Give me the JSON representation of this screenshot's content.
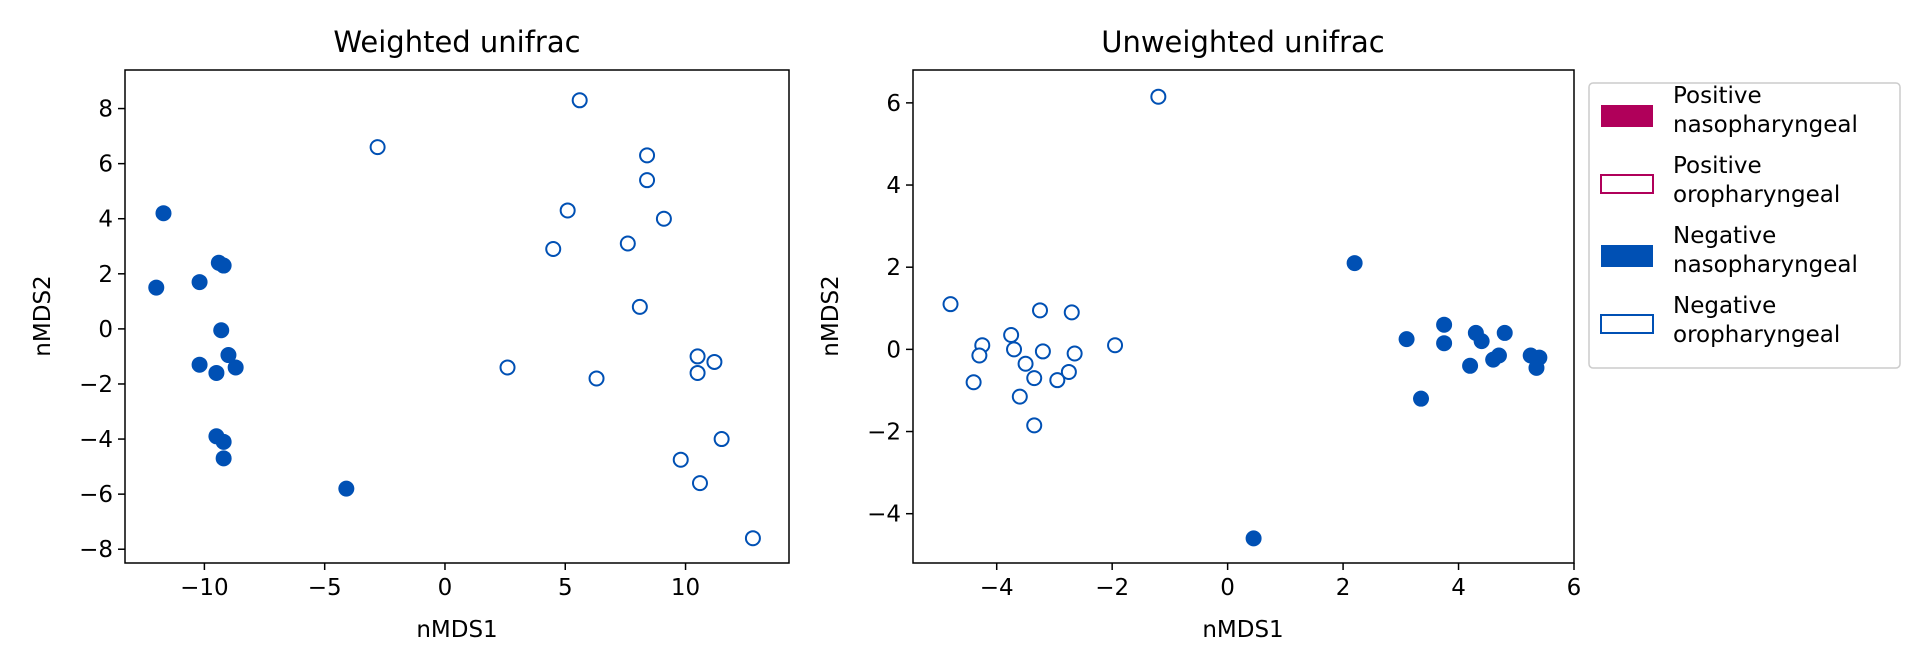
{
  "colors": {
    "positive": "#b0005a",
    "negative": "#0050b4"
  },
  "legend": {
    "placement": "outside-right",
    "entries": [
      {
        "lines": [
          "Positive",
          "nasopharyngeal"
        ],
        "color": "#b0005a",
        "filled": true
      },
      {
        "lines": [
          "Positive",
          "oropharyngeal"
        ],
        "color": "#b0005a",
        "filled": false
      },
      {
        "lines": [
          "Negative",
          "nasopharyngeal"
        ],
        "color": "#0050b4",
        "filled": true
      },
      {
        "lines": [
          "Negative",
          "oropharyngeal"
        ],
        "color": "#0050b4",
        "filled": false
      }
    ]
  },
  "chart_data": [
    {
      "type": "scatter",
      "title": "Weighted unifrac",
      "xlabel": "nMDS1",
      "ylabel": "nMDS2",
      "xlim": [
        -13.3,
        14.3
      ],
      "ylim": [
        -8.5,
        9.4
      ],
      "xticks": [
        -10,
        -5,
        0,
        5,
        10
      ],
      "xtick_labels": [
        "−10",
        "−5",
        "0",
        "5",
        "10"
      ],
      "yticks": [
        -8,
        -6,
        -4,
        -2,
        0,
        2,
        4,
        6,
        8
      ],
      "ytick_labels": [
        "−8",
        "−6",
        "−4",
        "−2",
        "0",
        "2",
        "4",
        "6",
        "8"
      ],
      "grid": false,
      "series": [
        {
          "name": "Negative nasopharyngeal",
          "color": "#0050b4",
          "filled": true,
          "points": [
            [
              -11.7,
              4.2
            ],
            [
              -12.0,
              1.5
            ],
            [
              -10.2,
              1.7
            ],
            [
              -9.4,
              2.4
            ],
            [
              -9.2,
              2.3
            ],
            [
              -9.3,
              -0.05
            ],
            [
              -10.2,
              -1.3
            ],
            [
              -9.5,
              -1.6
            ],
            [
              -9.0,
              -0.95
            ],
            [
              -8.7,
              -1.4
            ],
            [
              -9.5,
              -3.9
            ],
            [
              -9.2,
              -4.1
            ],
            [
              -9.2,
              -4.7
            ],
            [
              -4.1,
              -5.8
            ]
          ]
        },
        {
          "name": "Negative oropharyngeal",
          "color": "#0050b4",
          "filled": false,
          "points": [
            [
              -2.8,
              6.6
            ],
            [
              5.6,
              8.3
            ],
            [
              8.4,
              6.3
            ],
            [
              8.4,
              5.4
            ],
            [
              9.1,
              4.0
            ],
            [
              5.1,
              4.3
            ],
            [
              4.5,
              2.9
            ],
            [
              7.6,
              3.1
            ],
            [
              8.1,
              0.8
            ],
            [
              2.6,
              -1.4
            ],
            [
              6.3,
              -1.8
            ],
            [
              10.5,
              -1.0
            ],
            [
              10.5,
              -1.6
            ],
            [
              11.2,
              -1.2
            ],
            [
              11.5,
              -4.0
            ],
            [
              9.8,
              -4.75
            ],
            [
              10.6,
              -5.6
            ],
            [
              12.8,
              -7.6
            ]
          ]
        }
      ]
    },
    {
      "type": "scatter",
      "title": "Unweighted unifrac",
      "xlabel": "nMDS1",
      "ylabel": "nMDS2",
      "xlim": [
        -5.45,
        6.0
      ],
      "ylim": [
        -5.2,
        6.8
      ],
      "xticks": [
        -4,
        -2,
        0,
        2,
        4,
        6
      ],
      "xtick_labels": [
        "−4",
        "−2",
        "0",
        "2",
        "4",
        "6"
      ],
      "yticks": [
        -4,
        -2,
        0,
        2,
        4,
        6
      ],
      "ytick_labels": [
        "−4",
        "−2",
        "0",
        "2",
        "4",
        "6"
      ],
      "grid": false,
      "series": [
        {
          "name": "Negative nasopharyngeal",
          "color": "#0050b4",
          "filled": true,
          "points": [
            [
              2.2,
              2.1
            ],
            [
              3.1,
              0.25
            ],
            [
              3.75,
              0.6
            ],
            [
              3.75,
              0.15
            ],
            [
              4.3,
              0.4
            ],
            [
              4.4,
              0.2
            ],
            [
              4.8,
              0.4
            ],
            [
              4.2,
              -0.4
            ],
            [
              4.6,
              -0.25
            ],
            [
              4.7,
              -0.15
            ],
            [
              5.25,
              -0.15
            ],
            [
              5.4,
              -0.2
            ],
            [
              5.35,
              -0.45
            ],
            [
              3.35,
              -1.2
            ],
            [
              0.45,
              -4.6
            ]
          ]
        },
        {
          "name": "Negative oropharyngeal",
          "color": "#0050b4",
          "filled": false,
          "points": [
            [
              -1.2,
              6.15
            ],
            [
              -4.8,
              1.1
            ],
            [
              -4.25,
              0.1
            ],
            [
              -4.3,
              -0.15
            ],
            [
              -4.4,
              -0.8
            ],
            [
              -3.75,
              0.35
            ],
            [
              -3.7,
              0.0
            ],
            [
              -3.25,
              0.95
            ],
            [
              -3.2,
              -0.05
            ],
            [
              -3.5,
              -0.35
            ],
            [
              -3.35,
              -0.7
            ],
            [
              -3.6,
              -1.15
            ],
            [
              -3.35,
              -1.85
            ],
            [
              -2.7,
              0.9
            ],
            [
              -2.65,
              -0.1
            ],
            [
              -2.75,
              -0.55
            ],
            [
              -2.95,
              -0.75
            ],
            [
              -1.95,
              0.1
            ]
          ]
        }
      ]
    }
  ]
}
